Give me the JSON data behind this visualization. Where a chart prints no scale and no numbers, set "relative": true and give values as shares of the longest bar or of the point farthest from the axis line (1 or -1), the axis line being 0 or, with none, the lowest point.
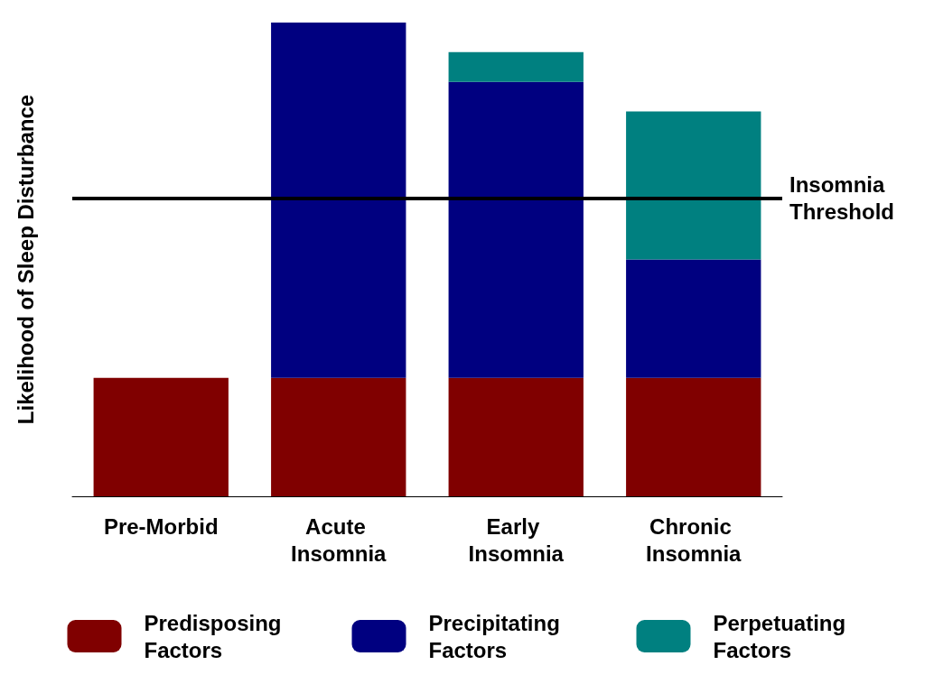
{
  "chart_data": {
    "type": "bar",
    "stacked": true,
    "relative": true,
    "ylabel": "Likelihood of Sleep Disturbance",
    "categories": [
      "Pre-Morbid",
      "Acute Insomnia",
      "Early Insomnia",
      "Chronic Insomnia"
    ],
    "series": [
      {
        "name": "Predisposing Factors",
        "color": "#800000",
        "values": [
          0.25,
          0.25,
          0.25,
          0.25
        ]
      },
      {
        "name": "Precipitating Factors",
        "color": "#000080",
        "values": [
          null,
          0.75,
          0.625,
          0.25
        ]
      },
      {
        "name": "Perpetuating Factors",
        "color": "#008080",
        "values": [
          null,
          null,
          0.0625,
          0.3125
        ]
      }
    ],
    "ref_lines": [
      {
        "axis": "y",
        "value": 0.625,
        "label": "Insomnia Threshold",
        "color": "#000000"
      }
    ],
    "legend": "bottom",
    "grid": false
  }
}
